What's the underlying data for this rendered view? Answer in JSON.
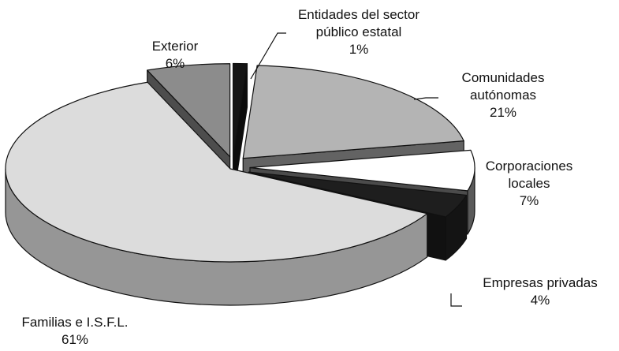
{
  "chart_data": {
    "type": "pie",
    "categories": [
      "Entidades del sector público estatal",
      "Comunidades autónomas",
      "Corporaciones locales",
      "Empresas privadas",
      "Familias e I.S.F.L.",
      "Exterior"
    ],
    "values": [
      1,
      21,
      7,
      4,
      61,
      6
    ],
    "value_labels": [
      "1%",
      "21%",
      "7%",
      "4%",
      "61%",
      "6%"
    ],
    "colors": [
      "#151515",
      "#b4b4b4",
      "#ffffff",
      "#1e1e1e",
      "#dcdcdc",
      "#8c8c8c"
    ]
  }
}
